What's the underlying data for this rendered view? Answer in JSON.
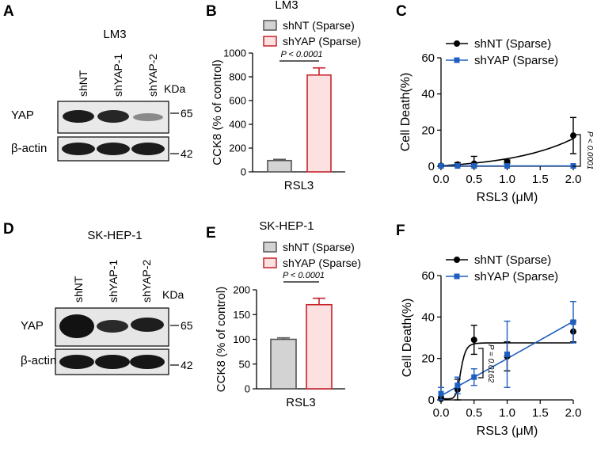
{
  "panels": {
    "A": {
      "letter": "A",
      "title": "LM3",
      "lanes": [
        "shNT",
        "shYAP-1",
        "shYAP-2"
      ],
      "unit": "KDa",
      "rows": [
        {
          "label": "YAP",
          "marker": "65"
        },
        {
          "label": "β-actin",
          "marker": "42"
        }
      ]
    },
    "D": {
      "letter": "D",
      "title": "SK-HEP-1",
      "lanes": [
        "shNT",
        "shYAP-1",
        "shYAP-2"
      ],
      "unit": "KDa",
      "rows": [
        {
          "label": "YAP",
          "marker": "65"
        },
        {
          "label": "β-actin",
          "marker": "42"
        }
      ]
    },
    "B": {
      "letter": "B"
    },
    "C": {
      "letter": "C"
    },
    "E": {
      "letter": "E"
    },
    "F": {
      "letter": "F"
    }
  },
  "chart_data": [
    {
      "panel": "B",
      "type": "bar",
      "title": "LM3",
      "categories": [
        "shNT (Sparse)",
        "shYAP (Sparse)"
      ],
      "legend": [
        "shNT   (Sparse)",
        "shYAP (Sparse)"
      ],
      "values": [
        95,
        815
      ],
      "errors": [
        10,
        60
      ],
      "colors": [
        "#d3d3d3",
        "#fde0e0"
      ],
      "edge_colors": [
        "#555555",
        "#c8212b"
      ],
      "ylabel": "CCK8  (% of control)",
      "xlabel": "RSL3",
      "ylim": [
        0,
        1000
      ],
      "yticks": [
        "0",
        "200",
        "400",
        "600",
        "800",
        "1000"
      ],
      "annotation": "P < 0.0001"
    },
    {
      "panel": "C",
      "type": "line",
      "xlabel": "RSL3 (μM)",
      "ylabel": "Cell Death(%)",
      "xlim": [
        0,
        2
      ],
      "ylim": [
        0,
        60
      ],
      "xticks": [
        "0.0",
        "0.5",
        "1.0",
        "1.5",
        "2.0"
      ],
      "yticks": [
        "0",
        "20",
        "40",
        "60"
      ],
      "annotation": "P < 0.0001",
      "series": [
        {
          "name": "shNT    (Sparse)",
          "color": "#000000",
          "marker": "circle",
          "x": [
            0,
            0.25,
            0.5,
            1.0,
            2.0
          ],
          "y": [
            0.3,
            1.0,
            1.5,
            2.5,
            17
          ],
          "err": [
            0.5,
            1.0,
            4.0,
            1.0,
            10
          ]
        },
        {
          "name": "shYAP  (Sparse)",
          "color": "#1f5fbf",
          "marker": "square",
          "x": [
            0,
            0.25,
            0.5,
            1.0,
            2.0
          ],
          "y": [
            0.2,
            0.2,
            0.2,
            0.2,
            0.2
          ],
          "err": [
            0,
            0,
            0,
            0,
            0
          ]
        }
      ]
    },
    {
      "panel": "E",
      "type": "bar",
      "title": "SK-HEP-1",
      "categories": [
        "shNT (Sparse)",
        "shYAP (Sparse)"
      ],
      "legend": [
        "shNT   (Sparse)",
        "shYAP (Sparse)"
      ],
      "values": [
        100,
        170
      ],
      "errors": [
        3,
        13
      ],
      "colors": [
        "#d3d3d3",
        "#fde0e0"
      ],
      "edge_colors": [
        "#555555",
        "#c8212b"
      ],
      "ylabel": "CCK8  (% of control)",
      "xlabel": "RSL3",
      "ylim": [
        0,
        200
      ],
      "yticks": [
        "0",
        "50",
        "100",
        "150",
        "200"
      ],
      "annotation": "P < 0.0001"
    },
    {
      "panel": "F",
      "type": "line",
      "xlabel": "RSL3 (μM)",
      "ylabel": "Cell Death(%)",
      "xlim": [
        0,
        2
      ],
      "ylim": [
        0,
        60
      ],
      "xticks": [
        "0.0",
        "0.5",
        "1.0",
        "1.5",
        "2.0"
      ],
      "yticks": [
        "0",
        "20",
        "40",
        "60"
      ],
      "annotation": "P = 0.0162",
      "series": [
        {
          "name": "shNT    (Sparse)",
          "color": "#000000",
          "marker": "circle",
          "x": [
            0,
            0.25,
            0.5,
            1.0,
            2.0
          ],
          "y": [
            0.5,
            5,
            29,
            21,
            33
          ],
          "err": [
            1,
            5,
            7,
            7,
            5
          ]
        },
        {
          "name": "shYAP  (Sparse)",
          "color": "#1f5fbf",
          "marker": "square",
          "x": [
            0,
            0.25,
            0.5,
            1.0,
            2.0
          ],
          "y": [
            3,
            7,
            11,
            22,
            37.5
          ],
          "err": [
            3,
            4,
            4,
            16,
            10
          ]
        }
      ]
    }
  ]
}
